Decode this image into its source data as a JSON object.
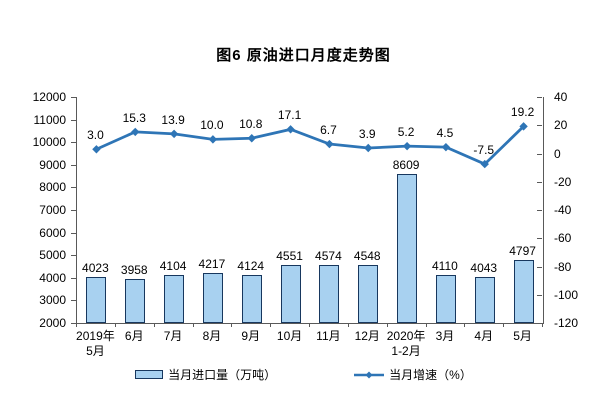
{
  "title": "图6 原油进口月度走势图",
  "chart_data": {
    "type": "bar",
    "subtype": "bar-line-combo",
    "title": "图6 原油进口月度走势图",
    "categories": [
      "2019年\n5月",
      "6月",
      "7月",
      "8月",
      "9月",
      "10月",
      "11月",
      "12月",
      "2020年\n1-2月",
      "3月",
      "4月",
      "5月"
    ],
    "series": [
      {
        "name": "当月进口量（万吨）",
        "type": "bar",
        "axis": "left",
        "values": [
          4023,
          3958,
          4104,
          4217,
          4124,
          4551,
          4574,
          4548,
          8609,
          4110,
          4043,
          4797
        ],
        "labels": [
          "4023",
          "3958",
          "4104",
          "4217",
          "4124",
          "4551",
          "4574",
          "4548",
          "8609",
          "4110",
          "4043",
          "4797"
        ]
      },
      {
        "name": "当月增速（%）",
        "type": "line",
        "axis": "right",
        "values": [
          3.0,
          15.3,
          13.9,
          10.0,
          10.8,
          17.1,
          6.7,
          3.9,
          5.2,
          4.5,
          -7.5,
          19.2
        ],
        "labels": [
          "3.0",
          "15.3",
          "13.9",
          "10.0",
          "10.8",
          "17.1",
          "6.7",
          "3.9",
          "5.2",
          "4.5",
          "-7.5",
          "19.2"
        ]
      }
    ],
    "left_axis": {
      "min": 2000,
      "max": 12000,
      "step": 1000
    },
    "right_axis": {
      "min": -120,
      "max": 40,
      "step": 20
    },
    "legend_position": "bottom",
    "grid": false,
    "colors": {
      "bar_fill": "#A8D1F0",
      "bar_border": "#17375E",
      "line": "#2E75B6",
      "axis": "#595959",
      "text": "#000000",
      "background": "#FFFFFF"
    }
  }
}
